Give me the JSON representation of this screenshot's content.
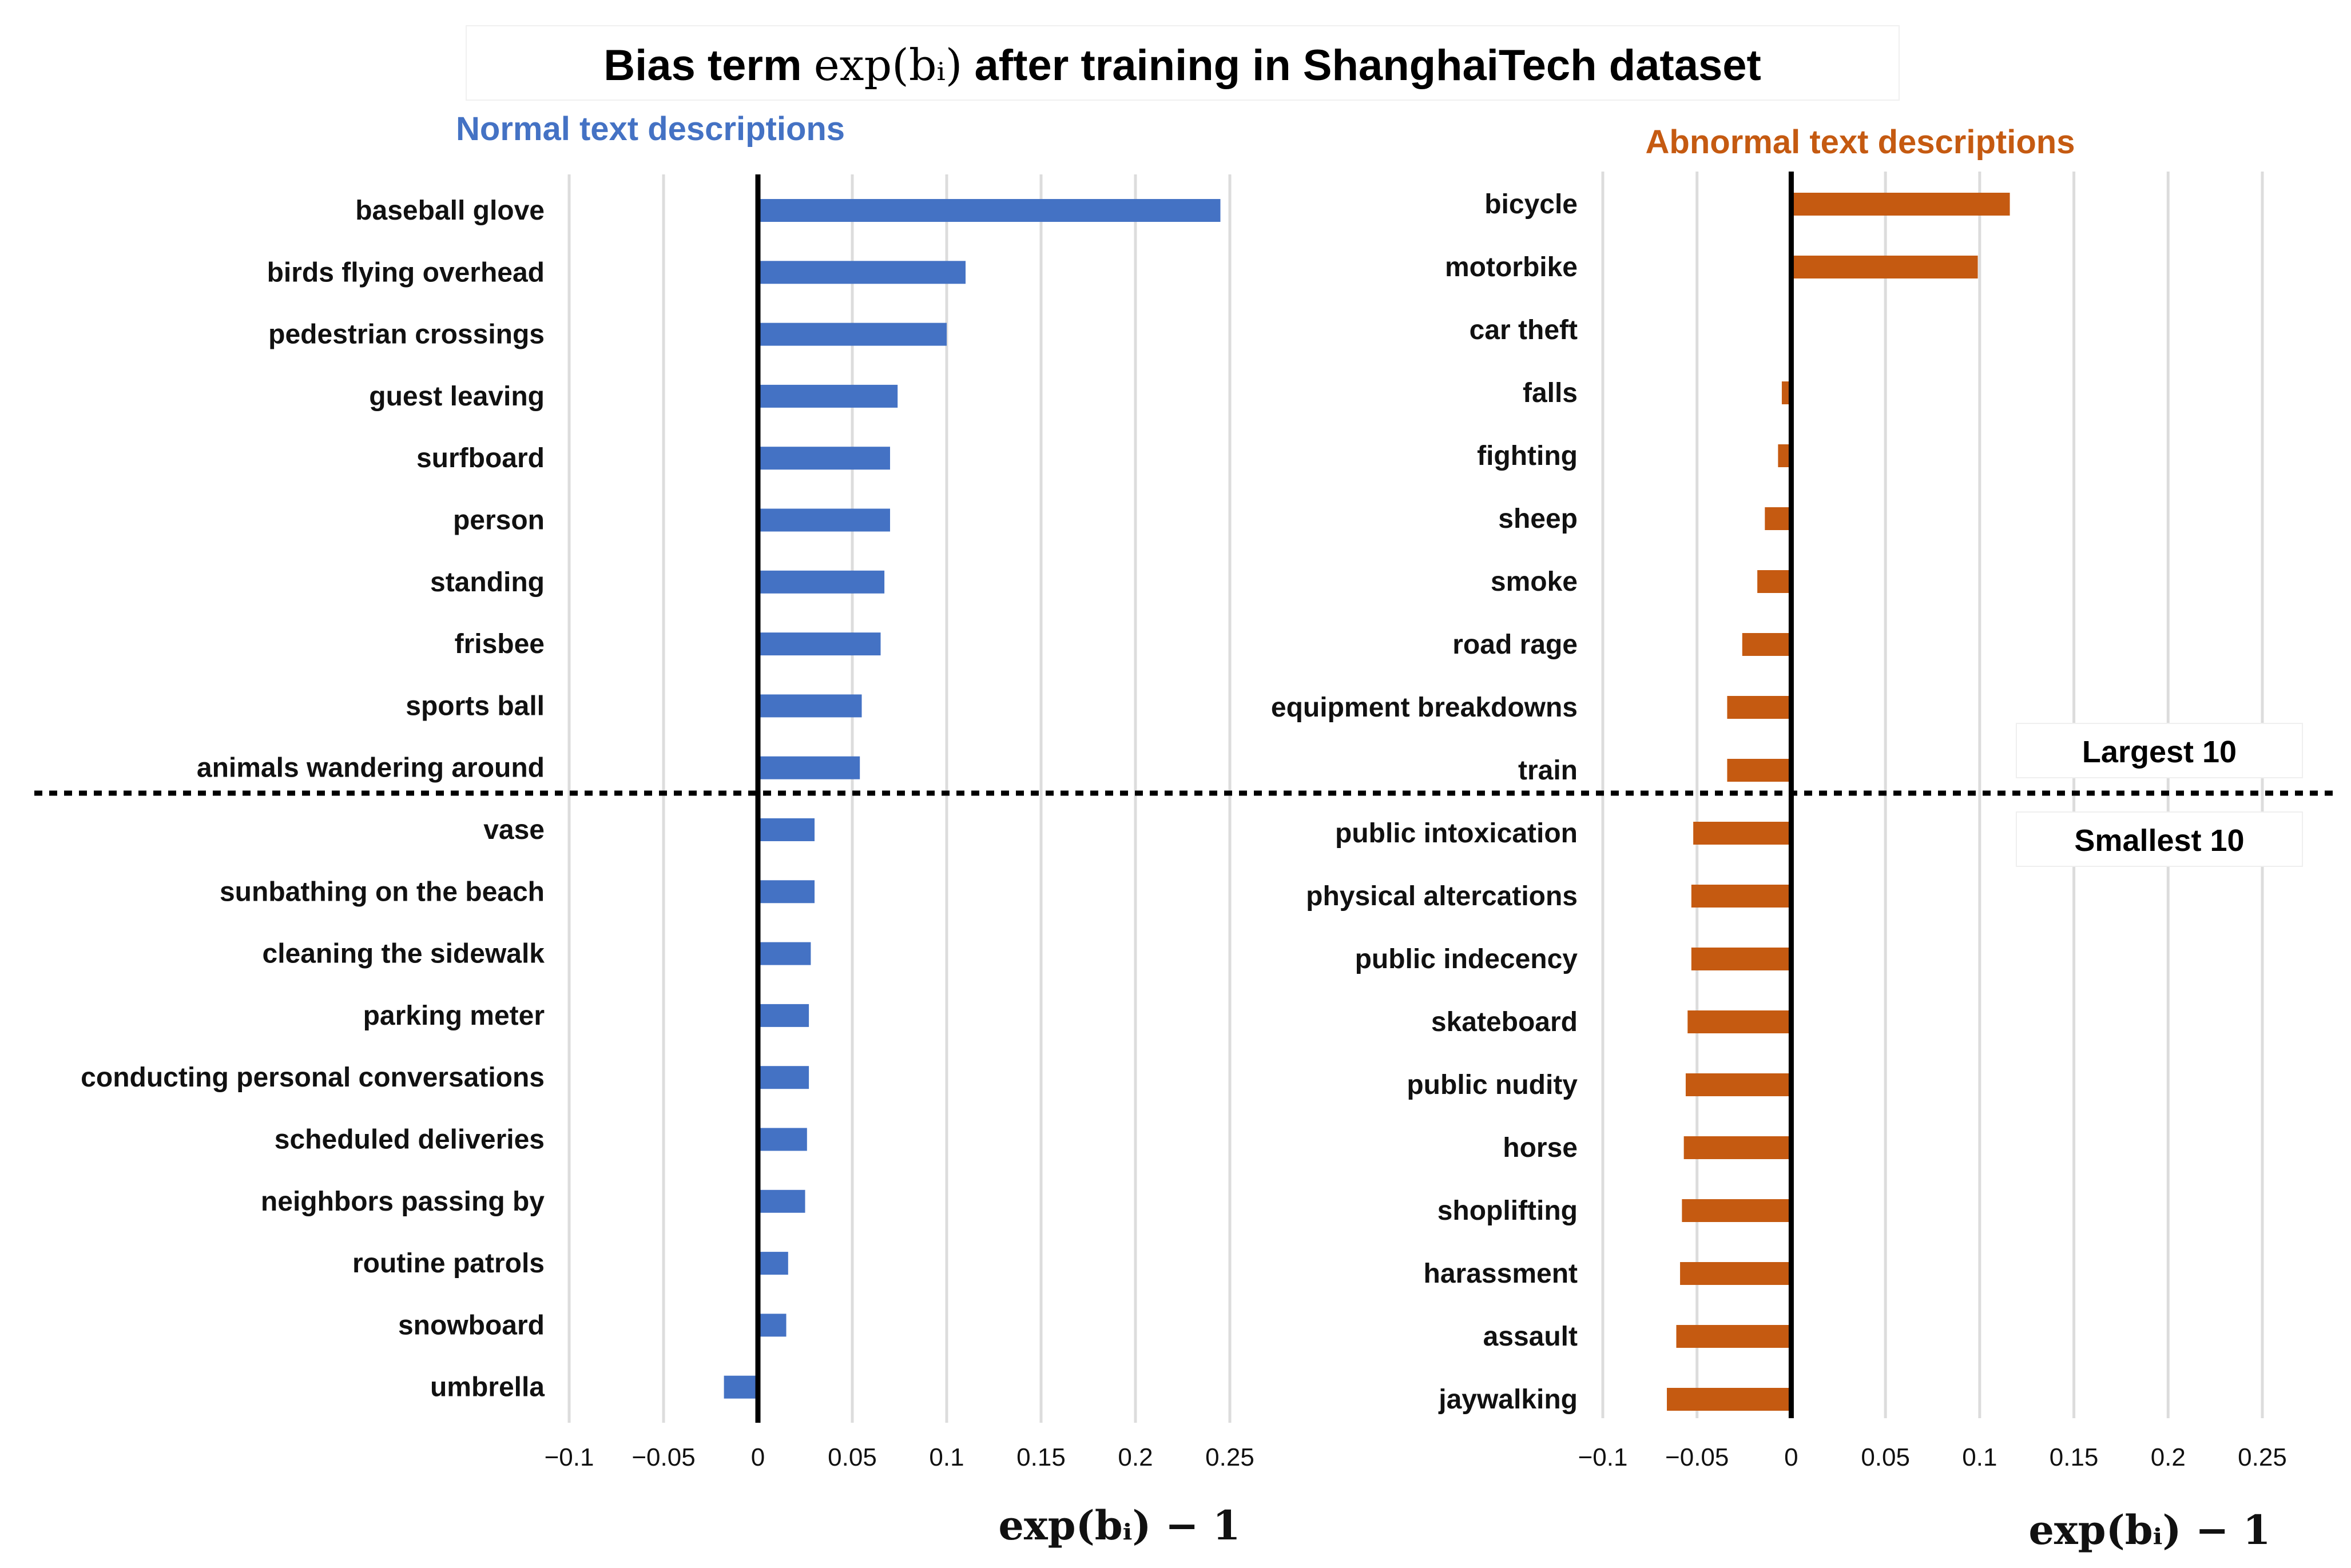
{
  "figure": {
    "title_prefix": "Bias term ",
    "title_math": "exp(bᵢ)",
    "title_suffix": " after training in ShanghaiTech dataset",
    "divider_labels": {
      "upper": "Largest 10",
      "lower": "Smallest 10"
    }
  },
  "chart_data": [
    {
      "type": "bar",
      "orientation": "horizontal",
      "title": "Normal text descriptions",
      "color": "#4472C4",
      "xlabel": "exp(bᵢ) − 1",
      "xlim": [
        -0.1,
        0.25
      ],
      "xticks": [
        -0.1,
        -0.05,
        0,
        0.05,
        0.1,
        0.15,
        0.2,
        0.25
      ],
      "xtick_labels": [
        "−0.1",
        "−0.05",
        "0",
        "0.05",
        "0.1",
        "0.15",
        "0.2",
        "0.25"
      ],
      "grid": true,
      "categories": [
        "baseball glove",
        "birds flying overhead",
        "pedestrian crossings",
        "guest leaving",
        "surfboard",
        "person",
        "standing",
        "frisbee",
        "sports ball",
        "animals wandering around",
        "vase",
        "sunbathing on the beach",
        "cleaning the sidewalk",
        "parking meter",
        "conducting personal conversations",
        "scheduled deliveries",
        "neighbors passing by",
        "routine patrols",
        "snowboard",
        "umbrella"
      ],
      "values": [
        0.245,
        0.11,
        0.1,
        0.074,
        0.07,
        0.07,
        0.067,
        0.065,
        0.055,
        0.054,
        0.03,
        0.03,
        0.028,
        0.027,
        0.027,
        0.026,
        0.025,
        0.016,
        0.015,
        -0.018
      ]
    },
    {
      "type": "bar",
      "orientation": "horizontal",
      "title": "Abnormal text descriptions",
      "color": "#C55A11",
      "xlabel": "exp(bᵢ) − 1",
      "xlim": [
        -0.1,
        0.25
      ],
      "xticks": [
        -0.1,
        -0.05,
        0,
        0.05,
        0.1,
        0.15,
        0.2,
        0.25
      ],
      "xtick_labels": [
        "−0.1",
        "−0.05",
        "0",
        "0.05",
        "0.1",
        "0.15",
        "0.2",
        "0.25"
      ],
      "grid": true,
      "categories": [
        "bicycle",
        "motorbike",
        "car theft",
        "falls",
        "fighting",
        "sheep",
        "smoke",
        "road rage",
        "equipment breakdowns",
        "train",
        "public intoxication",
        "physical altercations",
        "public indecency",
        "skateboard",
        "public nudity",
        "horse",
        "shoplifting",
        "harassment",
        "assault",
        "jaywalking"
      ],
      "values": [
        0.116,
        0.099,
        0.0,
        -0.005,
        -0.007,
        -0.014,
        -0.018,
        -0.026,
        -0.034,
        -0.034,
        -0.052,
        -0.053,
        -0.053,
        -0.055,
        -0.056,
        -0.057,
        -0.058,
        -0.059,
        -0.061,
        -0.066
      ]
    }
  ]
}
